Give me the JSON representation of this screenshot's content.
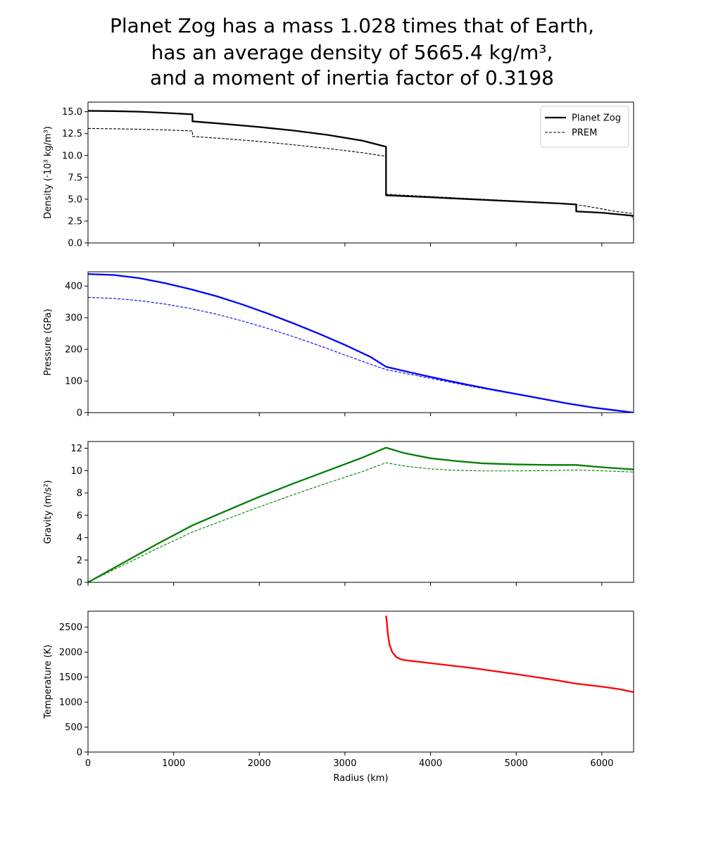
{
  "figure": {
    "title_lines": [
      "Planet Zog has a mass 1.028 times that of Earth,",
      "has an average density of 5665.4 kg/m³,",
      "and a moment of inertia factor of 0.3198"
    ]
  },
  "chart_data": [
    {
      "type": "line",
      "xlim": [
        0,
        6371
      ],
      "ylim": [
        0,
        16.1
      ],
      "xticks": [
        0,
        1000,
        2000,
        3000,
        4000,
        5000,
        6000
      ],
      "yticks": [
        0,
        2.5,
        5,
        7.5,
        10,
        12.5,
        15
      ],
      "ytick_labels": [
        "0.0",
        "2.5",
        "5.0",
        "7.5",
        "10.0",
        "12.5",
        "15.0"
      ],
      "xlabel": "",
      "ylabel": "Density (·10³ kg/m³)",
      "grid": false,
      "legend": "top-right",
      "series": [
        {
          "name": "Planet Zog",
          "style": "solid",
          "color": "#000000",
          "x": [
            0,
            300,
            600,
            900,
            1220,
            1220,
            1600,
            2000,
            2400,
            2800,
            3200,
            3480,
            3480,
            4000,
            4500,
            5000,
            5500,
            5701,
            5701,
            6000,
            6371
          ],
          "y": [
            15.1,
            15.07,
            15.0,
            14.87,
            14.7,
            13.9,
            13.6,
            13.25,
            12.85,
            12.35,
            11.7,
            11.0,
            5.45,
            5.22,
            4.98,
            4.75,
            4.52,
            4.4,
            3.6,
            3.45,
            3.1
          ]
        },
        {
          "name": "PREM",
          "style": "dashed",
          "color": "#000000",
          "x": [
            0,
            300,
            600,
            900,
            1220,
            1220,
            1600,
            2000,
            2400,
            2800,
            3200,
            3480,
            3480,
            4000,
            4500,
            5000,
            5500,
            5701,
            5701,
            5960,
            6151,
            6346,
            6356,
            6371
          ],
          "y": [
            13.09,
            13.05,
            13.0,
            12.92,
            12.8,
            12.17,
            11.92,
            11.6,
            11.22,
            10.8,
            10.32,
            9.9,
            5.56,
            5.3,
            5.05,
            4.8,
            4.55,
            4.44,
            4.38,
            3.97,
            3.62,
            3.38,
            2.9,
            2.6
          ]
        }
      ]
    },
    {
      "type": "line",
      "xlim": [
        0,
        6371
      ],
      "ylim": [
        0,
        445
      ],
      "xticks": [
        0,
        1000,
        2000,
        3000,
        4000,
        5000,
        6000
      ],
      "yticks": [
        0,
        100,
        200,
        300,
        400
      ],
      "xlabel": "",
      "ylabel": "Pressure (GPa)",
      "grid": false,
      "series": [
        {
          "name": "",
          "style": "solid",
          "color": "#0000ff",
          "x": [
            0,
            300,
            600,
            900,
            1200,
            1500,
            1800,
            2100,
            2400,
            2700,
            3000,
            3300,
            3480,
            3800,
            4100,
            4400,
            4700,
            5000,
            5300,
            5600,
            5900,
            6200,
            6371
          ],
          "y": [
            438,
            435,
            425,
            409,
            390,
            368,
            342,
            313,
            282,
            249,
            214,
            176,
            145,
            125,
            107,
            90,
            74,
            59,
            44,
            29,
            16,
            6,
            0
          ]
        },
        {
          "name": "",
          "style": "dashed",
          "color": "#0000ff",
          "x": [
            0,
            300,
            600,
            900,
            1200,
            1500,
            1800,
            2100,
            2400,
            2700,
            3000,
            3300,
            3480,
            3800,
            4100,
            4400,
            4700,
            5000,
            5300,
            5600,
            5900,
            6200,
            6371
          ],
          "y": [
            364,
            361,
            354,
            343,
            329,
            311,
            290,
            266,
            240,
            212,
            182,
            153,
            136,
            119,
            103,
            87,
            72,
            58,
            44,
            30,
            16,
            6,
            0
          ]
        }
      ]
    },
    {
      "type": "line",
      "xlim": [
        0,
        6371
      ],
      "ylim": [
        0,
        12.6
      ],
      "xticks": [
        0,
        1000,
        2000,
        3000,
        4000,
        5000,
        6000
      ],
      "yticks": [
        0,
        2,
        4,
        6,
        8,
        10,
        12
      ],
      "xlabel": "",
      "ylabel": "Gravity (m/s²)",
      "grid": false,
      "series": [
        {
          "name": "",
          "style": "solid",
          "color": "#008000",
          "x": [
            0,
            400,
            800,
            1220,
            1600,
            2000,
            2400,
            2800,
            3200,
            3480,
            3700,
            4000,
            4300,
            4600,
            5000,
            5400,
            5701,
            6000,
            6371
          ],
          "y": [
            0,
            1.7,
            3.4,
            5.1,
            6.35,
            7.65,
            8.85,
            10.0,
            11.15,
            12.05,
            11.55,
            11.1,
            10.85,
            10.65,
            10.55,
            10.5,
            10.5,
            10.3,
            10.1
          ]
        },
        {
          "name": "",
          "style": "dashed",
          "color": "#008000",
          "x": [
            0,
            400,
            800,
            1220,
            1600,
            2000,
            2400,
            2800,
            3200,
            3480,
            3700,
            4000,
            4300,
            4600,
            5000,
            5400,
            5701,
            6000,
            6371
          ],
          "y": [
            0,
            1.5,
            3.0,
            4.5,
            5.6,
            6.75,
            7.85,
            8.9,
            9.9,
            10.7,
            10.4,
            10.15,
            10.02,
            9.97,
            9.97,
            10.0,
            10.05,
            9.98,
            9.87
          ]
        }
      ]
    },
    {
      "type": "line",
      "xlim": [
        0,
        6371
      ],
      "ylim": [
        0,
        2820
      ],
      "xticks": [
        0,
        1000,
        2000,
        3000,
        4000,
        5000,
        6000
      ],
      "yticks": [
        0,
        500,
        1000,
        1500,
        2000,
        2500
      ],
      "xlabel": "Radius (km)",
      "ylabel": "Temperature (K)",
      "grid": false,
      "series": [
        {
          "name": "",
          "style": "solid",
          "color": "#ff0000",
          "x": [
            3480,
            3490,
            3500,
            3520,
            3550,
            3600,
            3650,
            3700,
            4000,
            4500,
            5000,
            5500,
            5701,
            6000,
            6200,
            6371
          ],
          "y": [
            2730,
            2600,
            2380,
            2160,
            2010,
            1900,
            1860,
            1840,
            1780,
            1680,
            1560,
            1430,
            1370,
            1310,
            1260,
            1200
          ]
        }
      ]
    }
  ]
}
